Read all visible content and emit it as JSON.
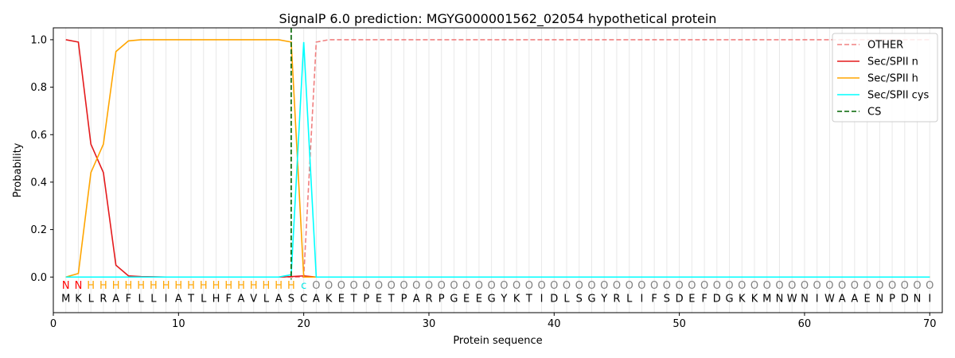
{
  "chart_data": {
    "type": "line",
    "title": "SignalP 6.0 prediction: MGYG000001562_02054 hypothetical protein",
    "xlabel": "Protein sequence",
    "ylabel": "Probability",
    "xlim": [
      0,
      71
    ],
    "ylim": [
      -0.15,
      1.05
    ],
    "x_ticks": [
      0,
      10,
      20,
      30,
      40,
      50,
      60,
      70
    ],
    "y_ticks": [
      0.0,
      0.2,
      0.4,
      0.6,
      0.8,
      1.0
    ],
    "grid": "vertical lines at every residue",
    "legend_position": "top-right",
    "sequence": "MKLRAFLLIATLHFAVLASCAKETPETPARPGEEGYKTIDLSGYRLIFSDEFDGKKMNWNIWAAENPDNI",
    "labels": "NNHHHHHHHHHHHHHHHHHCOOOOOOOOOOOOOOOOOOOOOOOOOOOOOOOOOOOOOOOOOOOOOOOOOOO",
    "label_colors": {
      "N": "#ff0000",
      "H": "#ffa500",
      "C": "#00e5e5",
      "O": "#808080"
    },
    "cleavage_site": 19,
    "series": [
      {
        "name": "OTHER",
        "color": "#f08080",
        "dash": "dashed",
        "values": [
          0,
          0,
          0,
          0,
          0,
          0,
          0,
          0,
          0,
          0,
          0,
          0,
          0,
          0,
          0,
          0,
          0,
          0,
          0,
          0,
          0.99,
          1,
          1,
          1,
          1,
          1,
          1,
          1,
          1,
          1,
          1,
          1,
          1,
          1,
          1,
          1,
          1,
          1,
          1,
          1,
          1,
          1,
          1,
          1,
          1,
          1,
          1,
          1,
          1,
          1,
          1,
          1,
          1,
          1,
          1,
          1,
          1,
          1,
          1,
          1,
          1,
          1,
          1,
          1,
          1,
          1,
          1,
          1,
          1,
          1
        ]
      },
      {
        "name": "Sec/SPII n",
        "color": "#e41a1c",
        "dash": "solid",
        "values": [
          1.0,
          0.99,
          0.56,
          0.44,
          0.05,
          0.005,
          0.002,
          0.001,
          0,
          0,
          0,
          0,
          0,
          0,
          0,
          0,
          0,
          0,
          0.002,
          0.005,
          0,
          0,
          0,
          0,
          0,
          0,
          0,
          0,
          0,
          0,
          0,
          0,
          0,
          0,
          0,
          0,
          0,
          0,
          0,
          0,
          0,
          0,
          0,
          0,
          0,
          0,
          0,
          0,
          0,
          0,
          0,
          0,
          0,
          0,
          0,
          0,
          0,
          0,
          0,
          0,
          0,
          0,
          0,
          0,
          0,
          0,
          0,
          0,
          0,
          0
        ]
      },
      {
        "name": "Sec/SPII h",
        "color": "#ffa500",
        "dash": "solid",
        "values": [
          0,
          0.015,
          0.44,
          0.56,
          0.95,
          0.995,
          1.0,
          1.0,
          1.0,
          1.0,
          1.0,
          1.0,
          1.0,
          1.0,
          1.0,
          1.0,
          1.0,
          1.0,
          0.99,
          0.0,
          0,
          0,
          0,
          0,
          0,
          0,
          0,
          0,
          0,
          0,
          0,
          0,
          0,
          0,
          0,
          0,
          0,
          0,
          0,
          0,
          0,
          0,
          0,
          0,
          0,
          0,
          0,
          0,
          0,
          0,
          0,
          0,
          0,
          0,
          0,
          0,
          0,
          0,
          0,
          0,
          0,
          0,
          0,
          0,
          0,
          0,
          0,
          0,
          0,
          0
        ]
      },
      {
        "name": "Sec/SPII cys",
        "color": "#00ffff",
        "dash": "solid",
        "values": [
          0,
          0,
          0,
          0,
          0,
          0,
          0,
          0,
          0,
          0,
          0,
          0,
          0,
          0,
          0,
          0,
          0,
          0,
          0.01,
          0.99,
          0,
          0,
          0,
          0,
          0,
          0,
          0,
          0,
          0,
          0,
          0,
          0,
          0,
          0,
          0,
          0,
          0,
          0,
          0,
          0,
          0,
          0,
          0,
          0,
          0,
          0,
          0,
          0,
          0,
          0,
          0,
          0,
          0,
          0,
          0,
          0,
          0,
          0,
          0,
          0,
          0,
          0,
          0,
          0,
          0,
          0,
          0,
          0,
          0,
          0
        ]
      },
      {
        "name": "CS",
        "color": "#006400",
        "dash": "dashed",
        "x": 19
      }
    ]
  }
}
